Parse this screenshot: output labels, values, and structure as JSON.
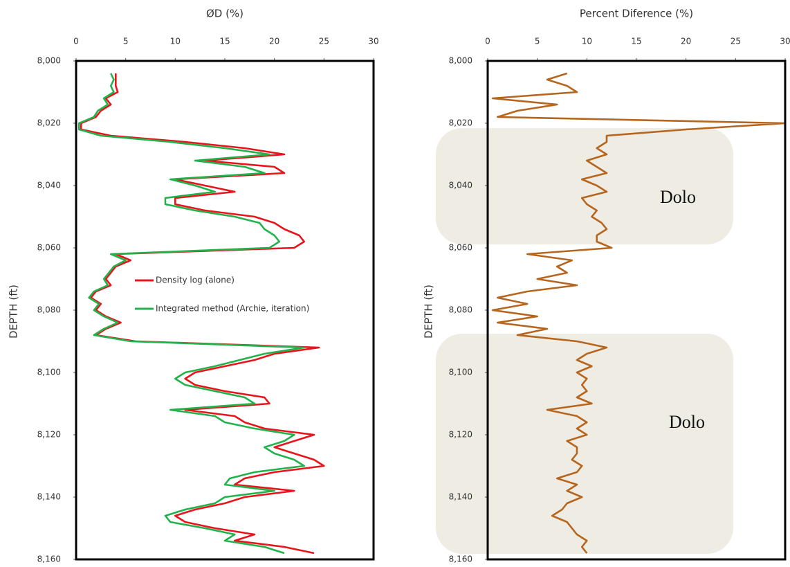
{
  "chart_data": [
    {
      "type": "line",
      "title": "ØD (%)",
      "ylabel": "DEPTH (ft)",
      "xlim": [
        0,
        30
      ],
      "xticks": [
        0,
        5,
        10,
        15,
        20,
        25,
        30
      ],
      "ylim": [
        8000,
        8160
      ],
      "yticks": [
        {
          "value": 8000,
          "label": "8,000"
        },
        {
          "value": 8020,
          "label": "8,020"
        },
        {
          "value": 8040,
          "label": "8,040"
        },
        {
          "value": 8060,
          "label": "8,060"
        },
        {
          "value": 8080,
          "label": "8,080"
        },
        {
          "value": 8100,
          "label": "8,100"
        },
        {
          "value": 8120,
          "label": "8,120"
        },
        {
          "value": 8140,
          "label": "8,140"
        },
        {
          "value": 8160,
          "label": "8,160"
        }
      ],
      "y": [
        8004,
        8006,
        8008,
        8010,
        8012,
        8014,
        8016,
        8018,
        8020,
        8022,
        8024,
        8026,
        8028,
        8030,
        8032,
        8034,
        8036,
        8038,
        8040,
        8042,
        8044,
        8046,
        8048,
        8050,
        8052,
        8054,
        8056,
        8058,
        8060,
        8062,
        8064,
        8066,
        8068,
        8070,
        8072,
        8074,
        8076,
        8078,
        8080,
        8082,
        8084,
        8086,
        8088,
        8090,
        8092,
        8094,
        8096,
        8098,
        8100,
        8102,
        8104,
        8106,
        8108,
        8110,
        8112,
        8114,
        8116,
        8118,
        8120,
        8122,
        8124,
        8126,
        8128,
        8130,
        8132,
        8134,
        8136,
        8138,
        8140,
        8142,
        8144,
        8146,
        8148,
        8150,
        8152,
        8154,
        8156,
        8158
      ],
      "series": [
        {
          "name": "Density log (alone)",
          "color": "#e8141c",
          "values": [
            4,
            4,
            4,
            4.2,
            3,
            3.5,
            2.5,
            2,
            0.5,
            0.5,
            3.5,
            11,
            17,
            21,
            13,
            20,
            21,
            10,
            13,
            16,
            10,
            10,
            13,
            18,
            20,
            21,
            22.5,
            23,
            22,
            4,
            5.5,
            4,
            3.5,
            3,
            3.5,
            2,
            1.5,
            2.5,
            2,
            3,
            4.5,
            3,
            2,
            6,
            24.5,
            20,
            18,
            15,
            12,
            11,
            12,
            15,
            19,
            19.5,
            11,
            16,
            17,
            19,
            24,
            22,
            20,
            22,
            24,
            25,
            20,
            17,
            16,
            22,
            17,
            15,
            12,
            10,
            11,
            14,
            18,
            16,
            21,
            24
          ]
        },
        {
          "name": "Integrated method (Archie, iteration)",
          "color": "#22b24c",
          "values": [
            3.5,
            3.8,
            3.5,
            3.8,
            2.8,
            3.2,
            2.2,
            1.8,
            0.3,
            0.3,
            2.5,
            9.5,
            15,
            19.5,
            12,
            17,
            19,
            9.5,
            12,
            14,
            9,
            9,
            12,
            16,
            18.5,
            19,
            20,
            20.5,
            19.5,
            3.5,
            5,
            3.8,
            3.3,
            2.8,
            3.2,
            1.8,
            1.3,
            2.3,
            1.8,
            2.8,
            4.2,
            2.8,
            1.8,
            5.5,
            23,
            19,
            16.5,
            14,
            11,
            10,
            11,
            14,
            17,
            18,
            9.5,
            14,
            15,
            18,
            22,
            21,
            19,
            20,
            22,
            23,
            18,
            15.5,
            15,
            20,
            15,
            14,
            11,
            9,
            9.5,
            13,
            16,
            15,
            19,
            21
          ]
        }
      ]
    },
    {
      "type": "line",
      "title": "Percent Diference (%)",
      "ylabel": "DEPTH (ft)",
      "xlim": [
        0,
        30
      ],
      "xticks": [
        0,
        5,
        10,
        15,
        20,
        25,
        30
      ],
      "ylim": [
        8000,
        8160
      ],
      "yticks": [
        {
          "value": 8000,
          "label": "8,000"
        },
        {
          "value": 8020,
          "label": "8,020"
        },
        {
          "value": 8040,
          "label": "8,040"
        },
        {
          "value": 8060,
          "label": "8,060"
        },
        {
          "value": 8080,
          "label": "8,080"
        },
        {
          "value": 8100,
          "label": "8,100"
        },
        {
          "value": 8120,
          "label": "8,120"
        },
        {
          "value": 8140,
          "label": "8,140"
        },
        {
          "value": 8160,
          "label": "8,160"
        }
      ],
      "annotations": [
        "Dolo",
        "Dolo"
      ],
      "y": [
        8004,
        8006,
        8008,
        8010,
        8012,
        8014,
        8016,
        8018,
        8020,
        8022,
        8024,
        8026,
        8028,
        8030,
        8032,
        8034,
        8036,
        8038,
        8040,
        8042,
        8044,
        8046,
        8048,
        8050,
        8052,
        8054,
        8056,
        8058,
        8060,
        8062,
        8064,
        8066,
        8068,
        8070,
        8072,
        8074,
        8076,
        8078,
        8080,
        8082,
        8084,
        8086,
        8088,
        8090,
        8092,
        8094,
        8096,
        8098,
        8100,
        8102,
        8104,
        8106,
        8108,
        8110,
        8112,
        8114,
        8116,
        8118,
        8120,
        8122,
        8124,
        8126,
        8128,
        8130,
        8132,
        8134,
        8136,
        8138,
        8140,
        8142,
        8144,
        8146,
        8148,
        8150,
        8152,
        8154,
        8156,
        8158
      ],
      "series": [
        {
          "color": "#b5651d",
          "values": [
            8,
            6,
            8,
            9,
            0.5,
            7,
            3,
            1,
            30,
            20,
            12,
            12,
            11,
            12,
            10,
            11,
            12,
            9.5,
            11,
            12,
            9.5,
            10,
            11,
            10.5,
            11.5,
            12,
            11,
            11,
            12.5,
            4,
            8.5,
            7,
            8,
            5,
            9,
            4,
            1,
            4,
            0.5,
            5,
            1,
            6,
            3,
            9,
            12,
            10,
            9,
            10.5,
            9,
            10,
            9.5,
            10,
            9,
            10.5,
            6,
            9,
            10,
            9,
            10,
            8,
            9,
            9,
            8.5,
            9.5,
            9,
            7,
            9,
            8,
            9.5,
            8,
            7.5,
            6.5,
            8,
            8.5,
            9,
            10,
            9.5,
            10
          ]
        }
      ]
    }
  ]
}
